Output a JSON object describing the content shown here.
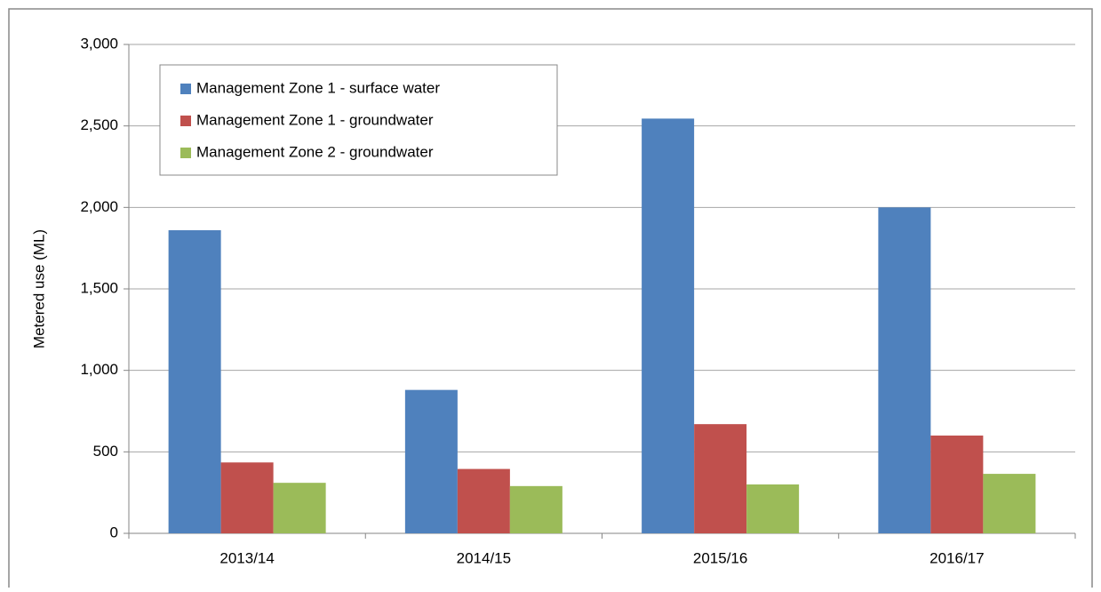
{
  "chart_data": {
    "type": "bar",
    "y_label": "Metered use (ML)",
    "categories": [
      "2013/14",
      "2014/15",
      "2015/16",
      "2016/17"
    ],
    "series": [
      {
        "name": "Management Zone 1 - surface water",
        "color": "#4f81bd",
        "values": [
          1860,
          880,
          2545,
          2000
        ]
      },
      {
        "name": "Management Zone 1 - groundwater",
        "color": "#c0504d",
        "values": [
          435,
          395,
          670,
          600
        ]
      },
      {
        "name": "Management Zone 2 - groundwater",
        "color": "#9bbb59",
        "values": [
          310,
          290,
          300,
          365
        ]
      }
    ],
    "ylim": [
      0,
      3000
    ],
    "yticks": [
      0,
      {
        "value": 500,
        "label": "500"
      },
      {
        "value": 1000,
        "label": "1,000"
      },
      {
        "value": 1500,
        "label": "1,500"
      },
      {
        "value": 2000,
        "label": "2,000"
      },
      {
        "value": 2500,
        "label": "2,500"
      },
      {
        "value": 3000,
        "label": "3,000"
      }
    ],
    "grid": true,
    "legend": "top-left"
  }
}
